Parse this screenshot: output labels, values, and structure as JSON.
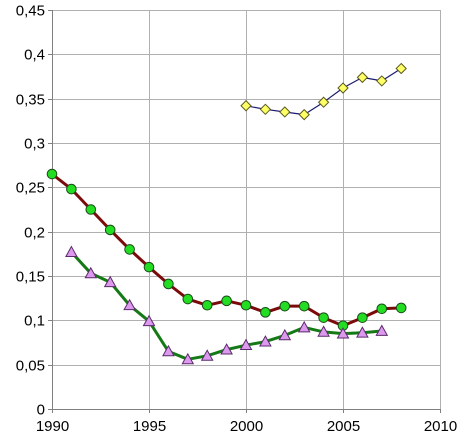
{
  "chart_data": {
    "type": "line",
    "title": "",
    "xlabel": "",
    "ylabel": "",
    "xlim": [
      1990,
      2010
    ],
    "ylim": [
      0,
      0.45
    ],
    "grid": true,
    "legend": "none",
    "x_ticks": [
      1990,
      1995,
      2000,
      2005,
      2010
    ],
    "x_tick_labels": [
      "1990",
      "1995",
      "2000",
      "2005",
      "2010"
    ],
    "y_ticks": [
      0,
      0.05,
      0.1,
      0.15,
      0.2,
      0.25,
      0.3,
      0.35,
      0.4,
      0.45
    ],
    "y_tick_labels": [
      "0",
      "0,05",
      "0,1",
      "0,15",
      "0,2",
      "0,25",
      "0,3",
      "0,35",
      "0,4",
      "0,45"
    ],
    "series": [
      {
        "line_color": "#7b0a0a",
        "marker_color": "#22dd22",
        "marker": "circle",
        "x": [
          1990,
          1991,
          1992,
          1993,
          1994,
          1995,
          1996,
          1997,
          1998,
          1999,
          2000,
          2001,
          2002,
          2003,
          2004,
          2005,
          2006,
          2007,
          2008
        ],
        "values": [
          0.265,
          0.248,
          0.225,
          0.202,
          0.18,
          0.16,
          0.141,
          0.124,
          0.117,
          0.122,
          0.117,
          0.109,
          0.116,
          0.116,
          0.103,
          0.094,
          0.103,
          0.113,
          0.114
        ]
      },
      {
        "line_color": "#157a15",
        "marker_color": "#dd99ee",
        "marker": "triangle",
        "x": [
          1991,
          1992,
          1993,
          1994,
          1995,
          1996,
          1997,
          1998,
          1999,
          2000,
          2001,
          2002,
          2003,
          2004,
          2005,
          2006,
          2007
        ],
        "values": [
          0.177,
          0.153,
          0.143,
          0.117,
          0.099,
          0.065,
          0.056,
          0.06,
          0.067,
          0.072,
          0.076,
          0.083,
          0.092,
          0.087,
          0.085,
          0.086,
          0.088
        ]
      },
      {
        "line_color": "#1a1a6e",
        "marker_color": "#ffff66",
        "marker": "diamond",
        "x": [
          2000,
          2001,
          2002,
          2003,
          2004,
          2005,
          2006,
          2007,
          2008
        ],
        "values": [
          0.342,
          0.338,
          0.335,
          0.332,
          0.346,
          0.362,
          0.374,
          0.37,
          0.384
        ]
      }
    ]
  }
}
